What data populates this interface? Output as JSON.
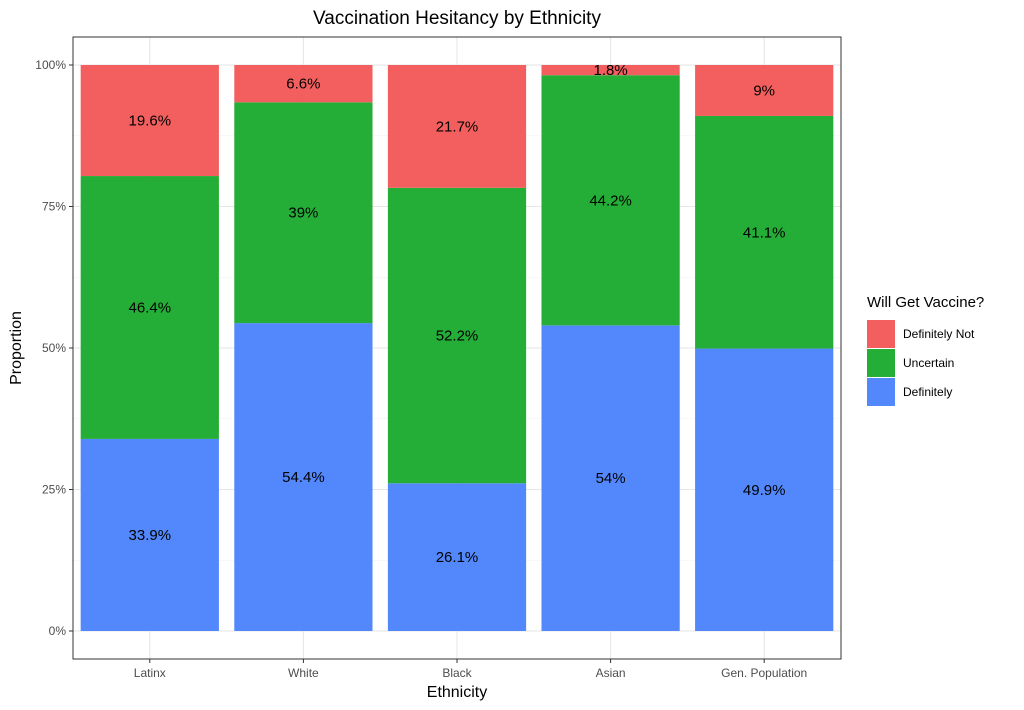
{
  "chart_data": {
    "type": "bar",
    "stacked": true,
    "normalized": true,
    "title": "Vaccination Hesitancy by Ethnicity",
    "xlabel": "Ethnicity",
    "ylabel": "Proportion",
    "ylim": [
      0,
      1
    ],
    "yticks": [
      {
        "value": 0,
        "label": "0%"
      },
      {
        "value": 0.25,
        "label": "25%"
      },
      {
        "value": 0.5,
        "label": "50%"
      },
      {
        "value": 0.75,
        "label": "75%"
      },
      {
        "value": 1,
        "label": "100%"
      }
    ],
    "grid": true,
    "categories": [
      "Latinx",
      "White",
      "Black",
      "Asian",
      "Gen. Population"
    ],
    "legend": {
      "title": "Will Get Vaccine?",
      "position": "right",
      "order": [
        "Definitely Not",
        "Uncertain",
        "Definitely"
      ]
    },
    "series": [
      {
        "name": "Definitely",
        "color": "#5288fc",
        "values": [
          33.9,
          54.4,
          26.1,
          54,
          49.9
        ],
        "labels": [
          "33.9%",
          "54.4%",
          "26.1%",
          "54%",
          "49.9%"
        ]
      },
      {
        "name": "Uncertain",
        "color": "#25ae37",
        "values": [
          46.4,
          39,
          52.2,
          44.2,
          41.1
        ],
        "labels": [
          "46.4%",
          "39%",
          "52.2%",
          "44.2%",
          "41.1%"
        ]
      },
      {
        "name": "Definitely Not",
        "color": "#f35f5f",
        "values": [
          19.6,
          6.6,
          21.7,
          1.8,
          9
        ],
        "labels": [
          "19.6%",
          "6.6%",
          "21.7%",
          "1.8%",
          "9%"
        ]
      }
    ]
  }
}
